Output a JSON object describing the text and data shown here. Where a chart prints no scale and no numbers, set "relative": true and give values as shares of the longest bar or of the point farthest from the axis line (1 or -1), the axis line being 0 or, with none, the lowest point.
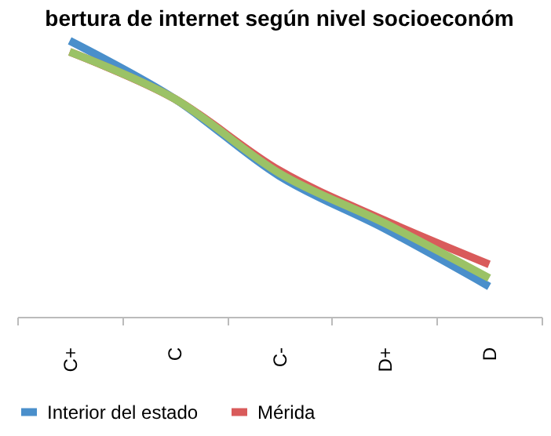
{
  "chart_data": {
    "type": "line",
    "title": "bertura  de internet según nivel socioeconóm",
    "relative": true,
    "categories": [
      "C+",
      "C",
      "C-",
      "D+",
      "D"
    ],
    "series": [
      {
        "name": "Interior del estado",
        "color": "#4a8fcb",
        "values": [
          1,
          0.79,
          0.51,
          0.32,
          0.11
        ]
      },
      {
        "name": "Mérida",
        "color": "#d95b5b",
        "values": [
          0.96,
          0.79,
          0.53,
          0.35,
          0.19
        ]
      },
      {
        "color": "#9bc266",
        "values": [
          0.96,
          0.79,
          0.52,
          0.34,
          0.14
        ]
      }
    ],
    "legend": "bottom",
    "grid": false,
    "marker": "none",
    "line_style": "solid"
  }
}
